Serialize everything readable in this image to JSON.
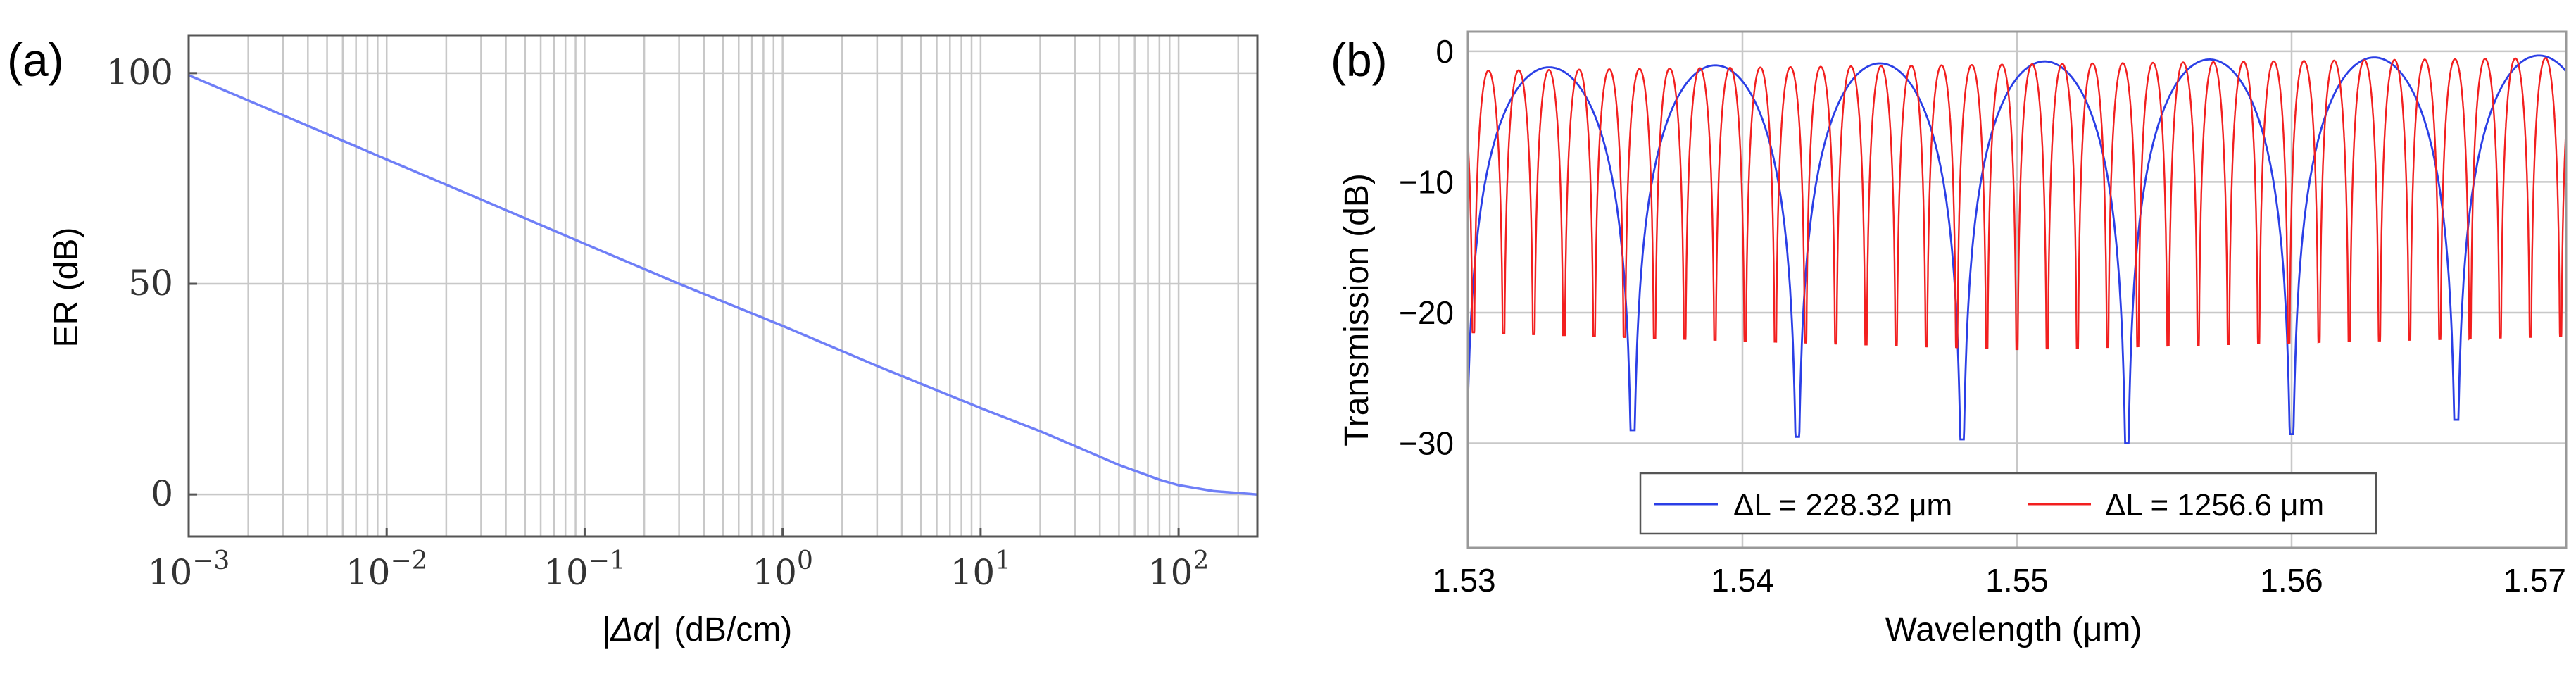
{
  "chart_data": [
    {
      "panel": "(a)",
      "type": "line",
      "xscale": "log",
      "xlabel_text": "(dB/cm)",
      "xlabel_symbol": "|Δα|",
      "ylabel": "ER (dB)",
      "xlim": [
        0.001,
        250
      ],
      "ylim": [
        -10,
        109
      ],
      "x_ticks": [
        {
          "value": 0.001,
          "base": "10",
          "exp": "−3"
        },
        {
          "value": 0.01,
          "base": "10",
          "exp": "−2"
        },
        {
          "value": 0.1,
          "base": "10",
          "exp": "−1"
        },
        {
          "value": 1,
          "base": "10",
          "exp": "0"
        },
        {
          "value": 10,
          "base": "10",
          "exp": "1"
        },
        {
          "value": 100,
          "base": "10",
          "exp": "2"
        }
      ],
      "y_ticks": [
        {
          "value": 0,
          "label": "0"
        },
        {
          "value": 50,
          "label": "50"
        },
        {
          "value": 100,
          "label": "100"
        }
      ],
      "series": [
        {
          "name": "ER",
          "color": "#6f7ff7",
          "x": [
            0.001,
            0.003,
            0.01,
            0.03,
            0.1,
            0.3,
            1,
            3,
            10,
            20,
            30,
            50,
            80,
            100,
            150,
            250
          ],
          "y": [
            99.5,
            90,
            79.5,
            70,
            59.5,
            50,
            40,
            30.5,
            20.5,
            15,
            11.5,
            7,
            3.5,
            2.2,
            0.8,
            0
          ]
        }
      ]
    },
    {
      "panel": "(b)",
      "type": "line",
      "xlabel": "Wavelength (μm)",
      "ylabel": "Transmission (dB)",
      "xlim": [
        1.53,
        1.57
      ],
      "ylim": [
        -38,
        1.5
      ],
      "x_ticks": [
        {
          "value": 1.53,
          "label": "1.53"
        },
        {
          "value": 1.54,
          "label": "1.54"
        },
        {
          "value": 1.55,
          "label": "1.55"
        },
        {
          "value": 1.56,
          "label": "1.56"
        },
        {
          "value": 1.57,
          "label": "1.57"
        }
      ],
      "y_ticks": [
        {
          "value": 0,
          "label": "0"
        },
        {
          "value": -10,
          "label": "−10"
        },
        {
          "value": -20,
          "label": "−20"
        },
        {
          "value": -30,
          "label": "−30"
        }
      ],
      "series": [
        {
          "name": "ΔL = 228.32 μm",
          "color": "#2b3fe6",
          "fsr": 0.006,
          "null_wavelengths": [
            1.5299,
            1.536,
            1.542,
            1.548,
            1.554,
            1.56,
            1.566
          ],
          "null_depths": [
            -27.5,
            -29,
            -29.5,
            -29.7,
            -30,
            -29.3,
            -28.2
          ],
          "peak_start": -1.3,
          "peak_end": -0.3
        },
        {
          "name": "ΔL = 1256.6 μm",
          "color": "#f21f1f",
          "fsr": 0.0011,
          "first_null": 1.5302,
          "null_depth_start": -21.5,
          "null_depth_mid": -22.8,
          "null_depth_end": -21.8,
          "peak_start": -1.5,
          "peak_end": -0.5
        }
      ],
      "legend": {
        "location": "bottom-center",
        "entries": [
          {
            "text": "ΔL = 228.32 μm",
            "color": "#2b3fe6"
          },
          {
            "text": "ΔL = 1256.6 μm",
            "color": "#f21f1f"
          }
        ]
      }
    }
  ]
}
